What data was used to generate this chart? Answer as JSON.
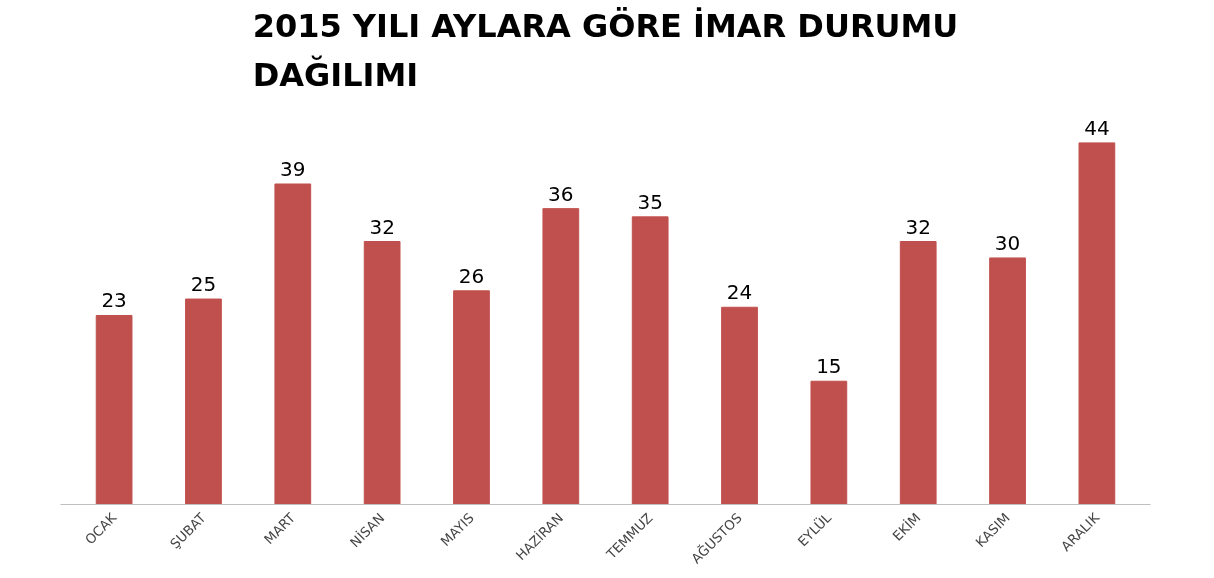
{
  "chart_data": {
    "type": "bar",
    "title": "2015 YILI AYLARA GÖRE İMAR DURUMU DAĞILIMI",
    "categories": [
      "OCAK",
      "ŞUBAT",
      "MART",
      "NİSAN",
      "MAYIS",
      "HAZİRAN",
      "TEMMUZ",
      "AĞUSTOS",
      "EYLÜL",
      "EKİM",
      "KASIM",
      "ARALIK"
    ],
    "values": [
      23,
      25,
      39,
      32,
      26,
      36,
      35,
      24,
      15,
      32,
      30,
      44
    ],
    "color": "#c0504d",
    "data_labels": true
  }
}
